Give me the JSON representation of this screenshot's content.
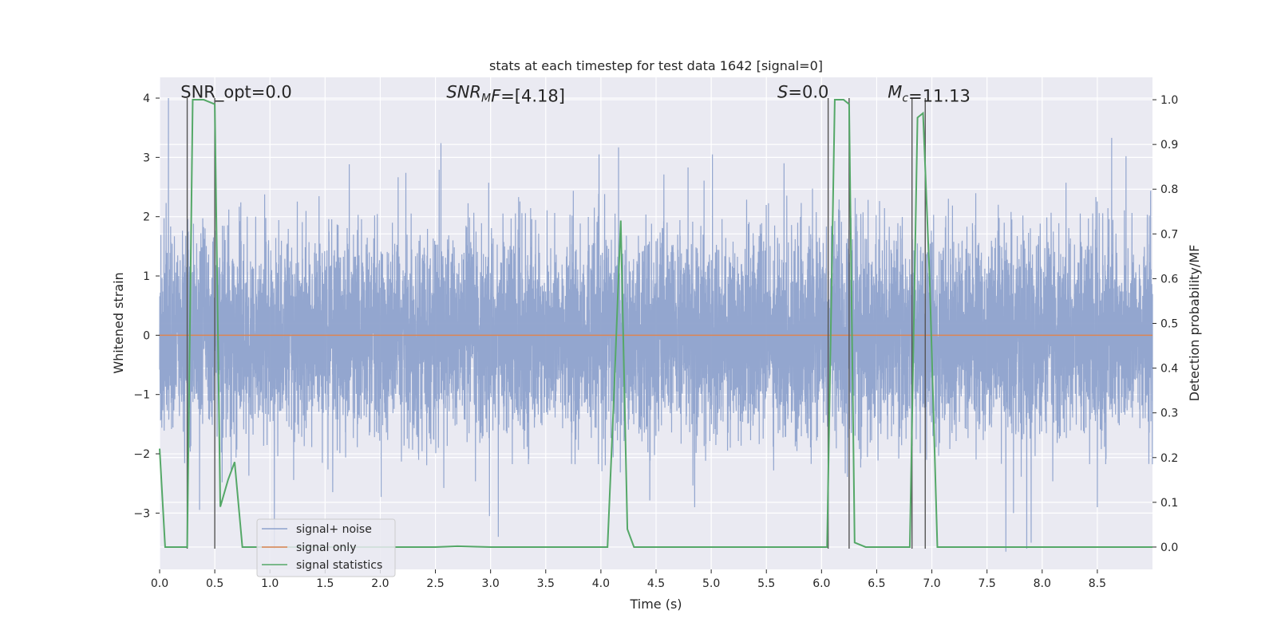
{
  "chart_data": {
    "type": "line",
    "title": "stats at each timestep for test data 1642 [signal=0]",
    "xlabel": "Time (s)",
    "ylabel": "Whitened strain",
    "ylabel_right": "Detection probability/MF",
    "xlim": [
      0,
      9.0
    ],
    "ylim": [
      -3.95,
      4.35
    ],
    "ylim_right": [
      -0.05,
      1.05
    ],
    "xticks": [
      0.0,
      0.5,
      1.0,
      1.5,
      2.0,
      2.5,
      3.0,
      3.5,
      4.0,
      4.5,
      5.0,
      5.5,
      6.0,
      6.5,
      7.0,
      7.5,
      8.0,
      8.5
    ],
    "xtick_labels": [
      "0.0",
      "0.5",
      "1.0",
      "1.5",
      "2.0",
      "2.5",
      "3.0",
      "3.5",
      "4.0",
      "4.5",
      "5.0",
      "5.5",
      "6.0",
      "6.5",
      "7.0",
      "7.5",
      "8.0",
      "8.5"
    ],
    "yticks": [
      -3,
      -2,
      -1,
      0,
      1,
      2,
      3,
      4
    ],
    "ytick_labels": [
      "−3",
      "−2",
      "−1",
      "0",
      "1",
      "2",
      "3",
      "4"
    ],
    "yticks_right": [
      0.0,
      0.1,
      0.2,
      0.3,
      0.4,
      0.5,
      0.6,
      0.7,
      0.8,
      0.9,
      1.0
    ],
    "ytick_labels_right": [
      "0.0",
      "0.1",
      "0.2",
      "0.3",
      "0.4",
      "0.5",
      "0.6",
      "0.7",
      "0.8",
      "0.9",
      "1.0"
    ],
    "grid": true,
    "legend_position": "lower-left",
    "annotations": [
      {
        "parts": [
          {
            "t": "SNR_opt=0.0",
            "it": false
          }
        ],
        "x": 0.19,
        "y": 4.1
      },
      {
        "parts": [
          {
            "t": "SNR",
            "it": true
          },
          {
            "t": "MF",
            "it": true,
            "sub": true,
            "subtext": "M"
          },
          {
            "t": "=[4.18]",
            "it": false
          }
        ],
        "x": 2.6,
        "y": 4.1
      },
      {
        "parts": [
          {
            "t": "S",
            "it": true
          },
          {
            "t": "=0.0",
            "it": false
          }
        ],
        "x": 5.6,
        "y": 4.1
      },
      {
        "parts": [
          {
            "t": "M",
            "it": true
          },
          {
            "t": "c",
            "it": true,
            "sub": true
          },
          {
            "t": "=11.13",
            "it": false
          }
        ],
        "x": 6.6,
        "y": 4.1
      }
    ],
    "series": [
      {
        "name": "signal+ noise",
        "color": "#8ea2cc",
        "kind": "noise",
        "sample_rate_hz": 1000,
        "envelope_sigma": 0.82,
        "spikes": [
          [
            0.08,
            4.0
          ],
          [
            0.22,
            1.3
          ],
          [
            2.55,
            3.24
          ],
          [
            4.16,
            3.17
          ],
          [
            4.79,
            2.83
          ],
          [
            5.66,
            2.9
          ],
          [
            8.63,
            3.33
          ],
          [
            8.76,
            3.02
          ],
          [
            2.99,
            -3.05
          ],
          [
            3.07,
            -3.4
          ],
          [
            1.04,
            -3.6
          ],
          [
            4.85,
            -2.9
          ],
          [
            7.86,
            -3.6
          ],
          [
            7.9,
            -3.5
          ],
          [
            7.74,
            -3.0
          ],
          [
            8.5,
            -2.9
          ]
        ]
      },
      {
        "name": "signal only",
        "color": "#dd8452",
        "kind": "line",
        "x": [
          0.0,
          9.0
        ],
        "y": [
          0.0,
          0.0
        ]
      },
      {
        "name": "signal statistics",
        "color": "#55a868",
        "kind": "line",
        "axis": "right",
        "x": [
          0.0,
          0.05,
          0.25,
          0.3,
          0.4,
          0.5,
          0.55,
          0.62,
          0.68,
          0.75,
          1.0,
          2.5,
          2.7,
          3.0,
          4.06,
          4.12,
          4.18,
          4.24,
          4.3,
          4.5,
          6.05,
          6.12,
          6.2,
          6.25,
          6.3,
          6.4,
          6.5,
          6.8,
          6.87,
          6.92,
          6.98,
          7.05,
          9.0
        ],
        "y": [
          0.22,
          0.0,
          0.0,
          1.0,
          1.0,
          0.99,
          0.09,
          0.15,
          0.19,
          0.0,
          0.0,
          0.0,
          0.002,
          0.0,
          0.0,
          0.35,
          0.73,
          0.04,
          0.0,
          0.0,
          0.0,
          1.0,
          1.0,
          0.99,
          0.01,
          0.0,
          0.0,
          0.0,
          0.96,
          0.97,
          0.6,
          0.0,
          0.0
        ]
      }
    ],
    "vertical_markers": {
      "color": "#555555",
      "x": [
        0.25,
        0.5,
        6.06,
        6.25,
        6.82,
        6.94
      ],
      "y_top": 4.0,
      "y_bottom": -3.6
    }
  }
}
